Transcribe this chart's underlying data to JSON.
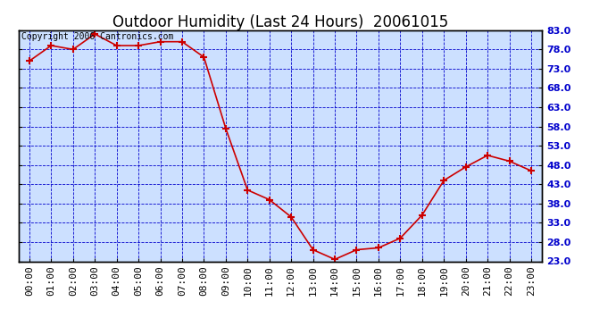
{
  "title": "Outdoor Humidity (Last 24 Hours)  20061015",
  "copyright_text": "Copyright 2006 Cantronics.com",
  "x_labels": [
    "00:00",
    "01:00",
    "02:00",
    "03:00",
    "04:00",
    "05:00",
    "06:00",
    "07:00",
    "08:00",
    "09:00",
    "10:00",
    "11:00",
    "12:00",
    "13:00",
    "14:00",
    "15:00",
    "16:00",
    "17:00",
    "18:00",
    "19:00",
    "20:00",
    "21:00",
    "22:00",
    "23:00"
  ],
  "y_values": [
    75.0,
    79.0,
    78.0,
    82.0,
    79.0,
    79.0,
    80.0,
    80.0,
    76.0,
    57.5,
    41.5,
    39.0,
    34.5,
    26.0,
    23.5,
    26.0,
    26.5,
    29.0,
    35.0,
    44.0,
    47.5,
    50.5,
    49.0,
    46.5
  ],
  "line_color": "#cc0000",
  "marker": "+",
  "marker_color": "#cc0000",
  "bg_color": "#cce0ff",
  "grid_color": "#0000cc",
  "axis_color": "#000000",
  "title_color": "#000000",
  "ylim_min": 23.0,
  "ylim_max": 83.0,
  "ytick_values": [
    23.0,
    28.0,
    33.0,
    38.0,
    43.0,
    48.0,
    53.0,
    58.0,
    63.0,
    68.0,
    73.0,
    78.0,
    83.0
  ],
  "title_fontsize": 12,
  "tick_fontsize": 8,
  "copyright_fontsize": 7,
  "ylabel_color": "#0000cc",
  "ylabel_fontweight": "bold"
}
